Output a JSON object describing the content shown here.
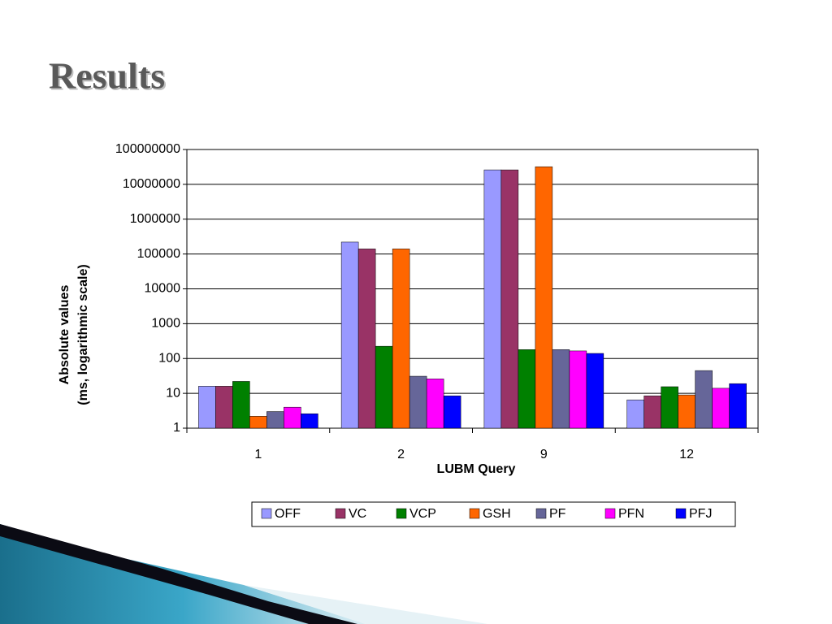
{
  "slide_title": "Results",
  "chart_data": {
    "type": "bar",
    "x_label": "LUBM Query",
    "y_label": [
      "Absolute values",
      "(ms, logarithmic scale)"
    ],
    "categories": [
      "1",
      "2",
      "9",
      "12"
    ],
    "log_scale": true,
    "grid": true,
    "legend": "bottom",
    "ylim": [
      1,
      100000000
    ],
    "yticks": [
      1,
      10,
      100,
      1000,
      10000,
      100000,
      1000000,
      10000000,
      100000000
    ],
    "series": [
      {
        "name": "OFF",
        "color": "#9999ff",
        "values": [
          16,
          220000,
          26000000,
          6.5
        ]
      },
      {
        "name": "VC",
        "color": "#993366",
        "values": [
          16,
          140000,
          26000000,
          8.5
        ]
      },
      {
        "name": "VCP",
        "color": "#008000",
        "values": [
          22,
          225,
          180,
          15.5
        ]
      },
      {
        "name": "GSH",
        "color": "#ff6600",
        "values": [
          2.2,
          140000,
          32000000,
          9
        ]
      },
      {
        "name": "PF",
        "color": "#666699",
        "values": [
          3,
          31,
          180,
          45
        ]
      },
      {
        "name": "PFN",
        "color": "#ff00ff",
        "values": [
          4,
          26,
          165,
          14
        ]
      },
      {
        "name": "PFJ",
        "color": "#0000ff",
        "values": [
          2.6,
          8.5,
          140,
          19
        ]
      }
    ]
  }
}
